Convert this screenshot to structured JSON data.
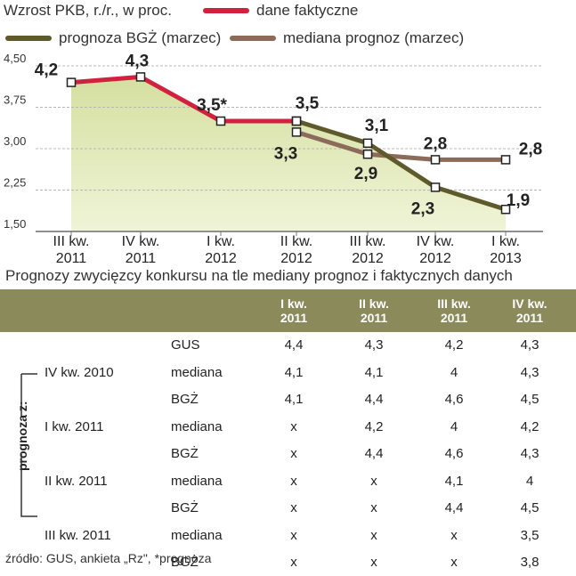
{
  "chart_data": {
    "type": "line",
    "title": "Wzrost PKB, r./r., w proc.",
    "categories": [
      [
        "III kw.",
        "2011"
      ],
      [
        "IV kw.",
        "2011"
      ],
      [
        "I kw.",
        "2012"
      ],
      [
        "II kw.",
        "2012"
      ],
      [
        "III kw.",
        "2012"
      ],
      [
        "IV kw.",
        "2012"
      ],
      [
        "I kw.",
        "2013"
      ]
    ],
    "yticks": [
      "1,50",
      "2,25",
      "3,00",
      "3,75",
      "4,50"
    ],
    "ylim": [
      1.5,
      4.5
    ],
    "series": [
      {
        "name": "dane faktyczne",
        "color": "#d2203f",
        "values": [
          4.2,
          4.3,
          3.5,
          3.5,
          null,
          null,
          null
        ],
        "labels": [
          "4,2",
          "4,3",
          "3,5*",
          "3,5",
          "",
          "",
          ""
        ]
      },
      {
        "name": "prognoza BGŻ (marzec)",
        "color": "#5e5a2c",
        "values": [
          null,
          null,
          null,
          3.5,
          3.1,
          2.3,
          1.9
        ],
        "labels": [
          "",
          "",
          "",
          "",
          "3,1",
          "2,3",
          "1,9"
        ]
      },
      {
        "name": "mediana prognoz (marzec)",
        "color": "#8c6b5a",
        "values": [
          null,
          null,
          null,
          3.3,
          2.9,
          2.8,
          2.8
        ],
        "labels": [
          "",
          "",
          "",
          "3,3",
          "2,9",
          "2,8",
          "2,8"
        ]
      }
    ]
  },
  "table": {
    "title": "Prognozy zwycięzcy konkursu na tle mediany prognoz i faktycznych danych",
    "columns": [
      [
        "I kw.",
        "2011"
      ],
      [
        "II kw.",
        "2011"
      ],
      [
        "III kw.",
        "2011"
      ],
      [
        "IV kw.",
        "2011"
      ]
    ],
    "side_label": "prognoza z:",
    "rows": [
      {
        "group": "",
        "type": "GUS",
        "values": [
          "4,4",
          "4,3",
          "4,2",
          "4,3"
        ]
      },
      {
        "group": "IV kw. 2010",
        "type": "mediana",
        "values": [
          "4,1",
          "4,1",
          "4",
          "4,3"
        ]
      },
      {
        "group": "",
        "type": "BGŻ",
        "values": [
          "4,1",
          "4,4",
          "4,6",
          "4,5"
        ]
      },
      {
        "group": "I kw. 2011",
        "type": "mediana",
        "values": [
          "x",
          "4,2",
          "4",
          "4,2"
        ]
      },
      {
        "group": "",
        "type": "BGŻ",
        "values": [
          "x",
          "4,4",
          "4,6",
          "4,3"
        ]
      },
      {
        "group": "II kw. 2011",
        "type": "mediana",
        "values": [
          "x",
          "x",
          "4,1",
          "4"
        ]
      },
      {
        "group": "",
        "type": "BGŻ",
        "values": [
          "x",
          "x",
          "4,4",
          "4,5"
        ]
      },
      {
        "group": "III kw. 2011",
        "type": "mediana",
        "values": [
          "x",
          "x",
          "x",
          "3,5"
        ]
      },
      {
        "group": "",
        "type": "BGŻ",
        "values": [
          "x",
          "x",
          "x",
          "3,8"
        ]
      }
    ]
  },
  "source": "źródło: GUS, ankieta „Rz\", *prognoza"
}
